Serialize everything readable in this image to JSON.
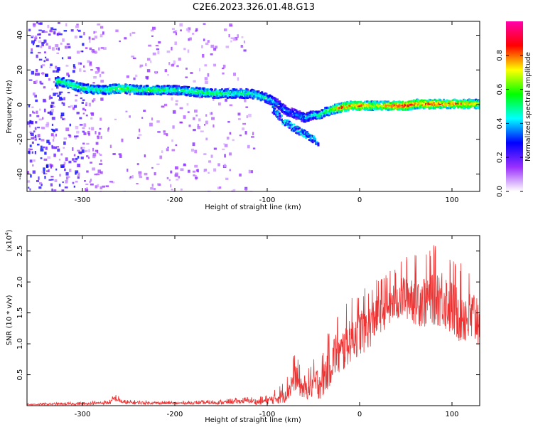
{
  "title": "C2E6.2023.326.01.48.G13",
  "chart_data": [
    {
      "type": "heatmap",
      "xlabel": "Height of straight line (km)",
      "ylabel": "Frequency (Hz)",
      "xlim": [
        -360,
        130
      ],
      "ylim": [
        -50,
        48
      ],
      "xticks": [
        -300,
        -200,
        -100,
        0,
        100
      ],
      "yticks": [
        -40,
        -20,
        0,
        20,
        40
      ],
      "grid": false,
      "colorbar": {
        "label": "Normalized spectral amplitude",
        "range": [
          0,
          1
        ],
        "ticks": [
          "0.0",
          "0.2",
          "0.4",
          "0.6",
          "0.8"
        ],
        "colormap": [
          "#ffffff",
          "#9b30ff",
          "#0000ff",
          "#00ffff",
          "#00ff00",
          "#ffff00",
          "#ff0000",
          "#ff00aa"
        ]
      },
      "ridge": {
        "x": [
          -325,
          -300,
          -280,
          -260,
          -240,
          -220,
          -200,
          -180,
          -160,
          -140,
          -120,
          -110,
          -100,
          -90,
          -80,
          -70,
          -60,
          -50,
          -45,
          -40,
          -30,
          -20,
          -10,
          0,
          10,
          20,
          30,
          40,
          50,
          60,
          70,
          80,
          90,
          100,
          110,
          120,
          130
        ],
        "y": [
          14,
          10,
          9,
          10,
          9,
          9,
          9,
          8,
          7,
          7,
          7,
          6,
          4,
          1,
          -3,
          -5,
          -7,
          -5,
          -6,
          -4,
          -2,
          -1,
          0,
          0,
          0,
          0,
          0,
          0,
          0,
          1,
          1,
          1,
          1,
          1,
          1,
          1,
          1
        ],
        "amplitude": [
          0.55,
          0.55,
          0.5,
          0.6,
          0.55,
          0.55,
          0.5,
          0.55,
          0.55,
          0.5,
          0.5,
          0.5,
          0.45,
          0.4,
          0.35,
          0.35,
          0.4,
          0.45,
          0.55,
          0.5,
          0.65,
          0.85,
          0.75,
          0.85,
          0.75,
          0.7,
          0.8,
          0.9,
          0.9,
          0.8,
          0.85,
          0.85,
          0.8,
          0.8,
          0.8,
          0.75,
          0.7
        ]
      },
      "branch": {
        "x": [
          -95,
          -85,
          -75,
          -65,
          -55,
          -45
        ],
        "y": [
          -2,
          -8,
          -12,
          -15,
          -18,
          -22
        ]
      }
    },
    {
      "type": "line",
      "xlabel": "Height of straight line (km)",
      "ylabel": "SNR (10 * v/v)",
      "y_multiplier": "(x10",
      "y_multiplier_exp": "4",
      "y_multiplier_close": ")",
      "xlim": [
        -360,
        130
      ],
      "ylim": [
        0,
        2.75
      ],
      "xticks": [
        -300,
        -200,
        -100,
        0,
        100
      ],
      "yticks": [
        0.5,
        1.0,
        1.5,
        2.0,
        2.5
      ],
      "grid": false,
      "color": "#ee3333",
      "series": [
        {
          "x": [
            -360,
            -300,
            -270,
            -265,
            -255,
            -200,
            -150,
            -120,
            -110,
            -100,
            -90,
            -80,
            -75,
            -70,
            -65,
            -60,
            -55,
            -50,
            -40,
            -35,
            -30,
            -25,
            -20,
            -15,
            -10,
            0,
            10,
            20,
            30,
            40,
            50,
            60,
            70,
            80,
            90,
            100,
            110,
            120,
            130
          ],
          "y": [
            0.02,
            0.03,
            0.05,
            0.12,
            0.05,
            0.04,
            0.05,
            0.08,
            0.06,
            0.08,
            0.12,
            0.2,
            0.3,
            0.5,
            0.35,
            0.25,
            0.3,
            0.35,
            0.4,
            0.6,
            0.7,
            0.9,
            0.8,
            1.0,
            1.1,
            1.2,
            1.3,
            1.5,
            1.6,
            1.7,
            1.8,
            1.75,
            1.7,
            1.8,
            1.75,
            1.6,
            1.5,
            1.4,
            1.45
          ],
          "spread": [
            0.01,
            0.02,
            0.03,
            0.05,
            0.03,
            0.02,
            0.03,
            0.04,
            0.05,
            0.06,
            0.1,
            0.15,
            0.2,
            0.25,
            0.2,
            0.15,
            0.2,
            0.25,
            0.3,
            0.35,
            0.35,
            0.4,
            0.4,
            0.4,
            0.4,
            0.4,
            0.4,
            0.35,
            0.35,
            0.35,
            0.4,
            0.45,
            0.45,
            0.5,
            0.5,
            0.5,
            0.5,
            0.5,
            0.5
          ]
        }
      ]
    }
  ]
}
